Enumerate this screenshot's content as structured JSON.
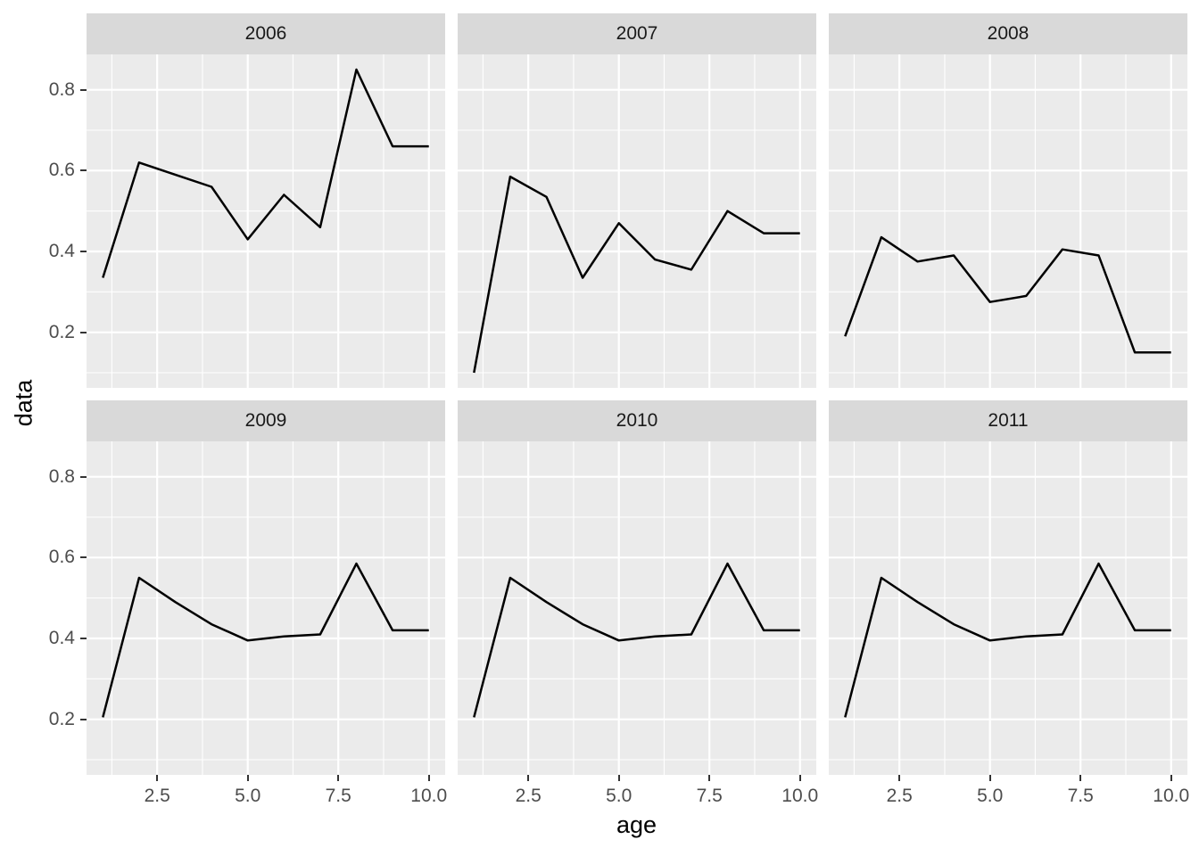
{
  "figure": {
    "background": "#FFFFFF"
  },
  "axes": {
    "x_title": "age",
    "y_title": "data",
    "x_tick_labels": [
      "2.5",
      "5.0",
      "7.5",
      "10.0"
    ],
    "x_tick_values": [
      2.5,
      5.0,
      7.5,
      10.0
    ],
    "y_tick_labels": [
      "0.2",
      "0.4",
      "0.6",
      "0.8"
    ],
    "y_tick_values": [
      0.2,
      0.4,
      0.6,
      0.8
    ]
  },
  "chart_data": {
    "type": "line",
    "title": "",
    "xlabel": "age",
    "ylabel": "data",
    "facet_variable_values": [
      "2006",
      "2007",
      "2008",
      "2009",
      "2010",
      "2011"
    ],
    "x": [
      1,
      2,
      3,
      4,
      5,
      6,
      7,
      8,
      9,
      10
    ],
    "xlim": [
      0.55,
      10.45
    ],
    "ylim": [
      0.0625,
      0.8875
    ],
    "x_major_gridlines": [
      2.5,
      5.0,
      7.5,
      10.0
    ],
    "x_minor_gridlines": [
      1.25,
      3.75,
      6.25,
      8.75
    ],
    "y_major_gridlines": [
      0.2,
      0.4,
      0.6,
      0.8
    ],
    "y_minor_gridlines": [
      0.1,
      0.3,
      0.5,
      0.7
    ],
    "grid_on": true,
    "legend_position": "none",
    "series": [
      {
        "name": "2006",
        "values": [
          0.335,
          0.62,
          0.59,
          0.56,
          0.43,
          0.54,
          0.46,
          0.85,
          0.66,
          0.66
        ]
      },
      {
        "name": "2007",
        "values": [
          0.1,
          0.585,
          0.535,
          0.335,
          0.47,
          0.38,
          0.355,
          0.5,
          0.445,
          0.445
        ]
      },
      {
        "name": "2008",
        "values": [
          0.19,
          0.435,
          0.375,
          0.39,
          0.275,
          0.29,
          0.405,
          0.39,
          0.15,
          0.15
        ]
      },
      {
        "name": "2009",
        "values": [
          0.205,
          0.55,
          0.49,
          0.435,
          0.395,
          0.405,
          0.41,
          0.585,
          0.42,
          0.42
        ]
      },
      {
        "name": "2010",
        "values": [
          0.205,
          0.55,
          0.49,
          0.435,
          0.395,
          0.405,
          0.41,
          0.585,
          0.42,
          0.42
        ]
      },
      {
        "name": "2011",
        "values": [
          0.205,
          0.55,
          0.49,
          0.435,
          0.395,
          0.405,
          0.41,
          0.585,
          0.42,
          0.42
        ]
      }
    ],
    "colors": {
      "line": "#000000",
      "panel_background": "#EBEBEB",
      "strip_background": "#D9D9D9",
      "gridline": "#FFFFFF",
      "tick_mark": "#333333",
      "tick_label": "#4D4D4D",
      "strip_text": "#1A1A1A",
      "axis_title": "#000000"
    }
  }
}
